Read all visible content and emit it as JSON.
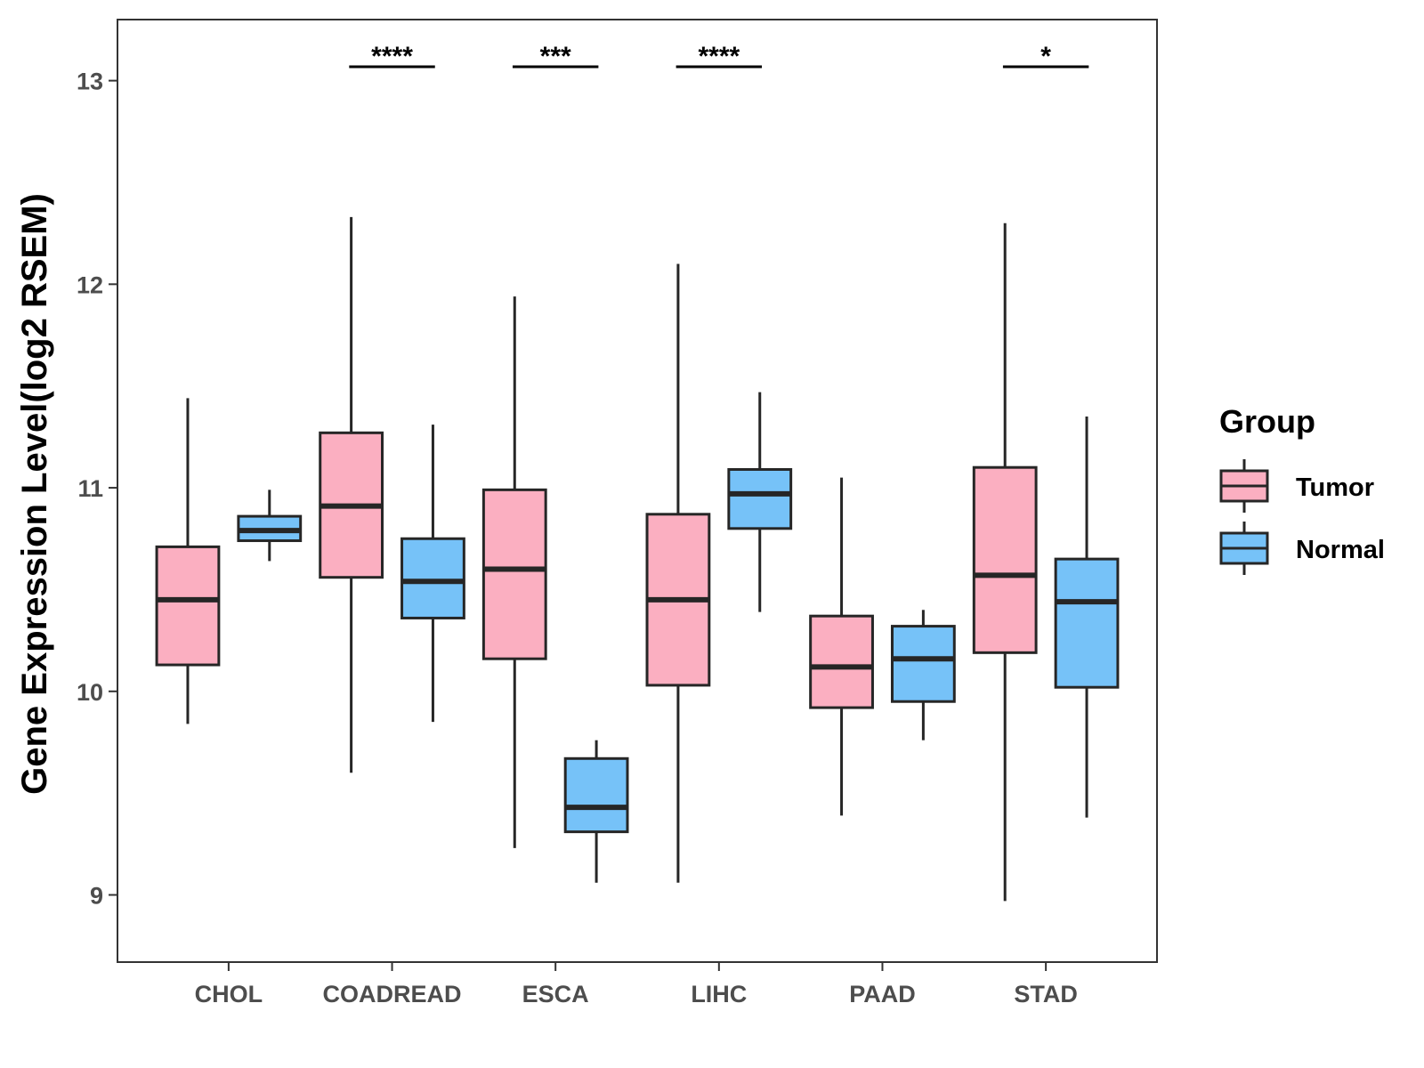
{
  "chart_data": {
    "type": "box",
    "title": "",
    "xlabel": "",
    "ylabel": "Gene Expression Level(log2 RSEM)",
    "ylim": [
      8.67,
      13.3
    ],
    "yticks": [
      9,
      10,
      11,
      12,
      13
    ],
    "categories": [
      "CHOL",
      "COADREAD",
      "ESCA",
      "LIHC",
      "PAAD",
      "STAD"
    ],
    "legend": {
      "title": "Group",
      "position": "right",
      "entries": [
        {
          "name": "Tumor",
          "color": "#fbafc1"
        },
        {
          "name": "Normal",
          "color": "#76c2f8"
        }
      ]
    },
    "series": [
      {
        "name": "Tumor",
        "color": "#fbafc1",
        "boxes": [
          {
            "category": "CHOL",
            "min": 9.84,
            "q1": 10.13,
            "median": 10.45,
            "q3": 10.71,
            "max": 11.44
          },
          {
            "category": "COADREAD",
            "min": 9.6,
            "q1": 10.56,
            "median": 10.91,
            "q3": 11.27,
            "max": 12.33
          },
          {
            "category": "ESCA",
            "min": 9.23,
            "q1": 10.16,
            "median": 10.6,
            "q3": 10.99,
            "max": 11.94
          },
          {
            "category": "LIHC",
            "min": 9.06,
            "q1": 10.03,
            "median": 10.45,
            "q3": 10.87,
            "max": 12.1
          },
          {
            "category": "PAAD",
            "min": 9.39,
            "q1": 9.92,
            "median": 10.12,
            "q3": 10.37,
            "max": 11.05
          },
          {
            "category": "STAD",
            "min": 8.97,
            "q1": 10.19,
            "median": 10.57,
            "q3": 11.1,
            "max": 12.3
          }
        ]
      },
      {
        "name": "Normal",
        "color": "#76c2f8",
        "boxes": [
          {
            "category": "CHOL",
            "min": 10.64,
            "q1": 10.74,
            "median": 10.79,
            "q3": 10.86,
            "max": 10.99
          },
          {
            "category": "COADREAD",
            "min": 9.85,
            "q1": 10.36,
            "median": 10.54,
            "q3": 10.75,
            "max": 11.31
          },
          {
            "category": "ESCA",
            "min": 9.06,
            "q1": 9.31,
            "median": 9.43,
            "q3": 9.67,
            "max": 9.76
          },
          {
            "category": "LIHC",
            "min": 10.39,
            "q1": 10.8,
            "median": 10.97,
            "q3": 11.09,
            "max": 11.47
          },
          {
            "category": "PAAD",
            "min": 9.76,
            "q1": 9.95,
            "median": 10.16,
            "q3": 10.32,
            "max": 10.4
          },
          {
            "category": "STAD",
            "min": 9.38,
            "q1": 10.02,
            "median": 10.44,
            "q3": 10.65,
            "max": 11.35
          }
        ]
      }
    ],
    "significance": [
      {
        "category": "COADREAD",
        "label": "****"
      },
      {
        "category": "ESCA",
        "label": "***"
      },
      {
        "category": "LIHC",
        "label": "****"
      },
      {
        "category": "STAD",
        "label": "*"
      }
    ]
  }
}
